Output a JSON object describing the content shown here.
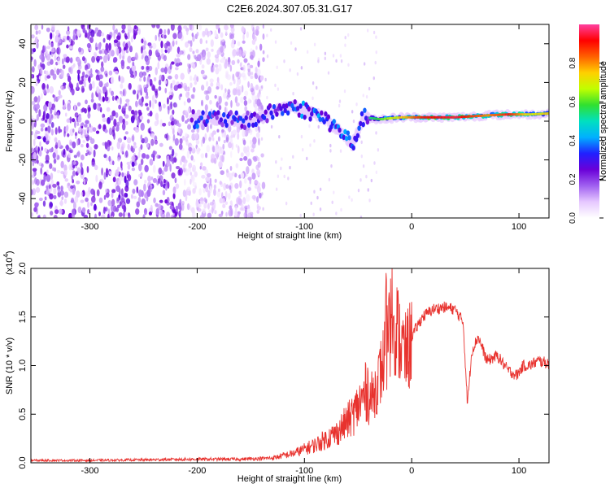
{
  "figure": {
    "title": "C2E6.2024.307.05.31.G17"
  },
  "chart_data": [
    {
      "type": "heatmap",
      "xlabel": "Height of straight line (km)",
      "ylabel": "Frequency (Hz)",
      "xlim": [
        -355,
        128
      ],
      "ylim": [
        -50,
        50
      ],
      "x_ticks": [
        -300,
        -200,
        -100,
        0,
        100
      ],
      "y_ticks": [
        -40,
        -20,
        0,
        20,
        40
      ],
      "x_tick_labels": [
        "-300",
        "-200",
        "-100",
        "0",
        "100"
      ],
      "y_tick_labels": [
        "-40",
        "-20",
        "0",
        "20",
        "40"
      ],
      "colorbar": {
        "label": "Normalized spectral amplitude",
        "range": [
          0,
          1
        ],
        "ticks": [
          0.0,
          0.2,
          0.4,
          0.6,
          0.8
        ],
        "tick_labels": [
          "0.0",
          "0.2",
          "0.4",
          "0.6",
          "0.8"
        ],
        "colormap": [
          "#ffffff",
          "#e6c8ff",
          "#a060f0",
          "#6a00d8",
          "#2020ff",
          "#00b0ff",
          "#00e0c0",
          "#30e030",
          "#c0ff00",
          "#ffd000",
          "#ff6000",
          "#ff0000",
          "#ff40a0"
        ]
      },
      "signal_track": [
        {
          "x": -205,
          "f": 1.0,
          "amp": 0.55
        },
        {
          "x": -180,
          "f": 1.5,
          "amp": 0.5
        },
        {
          "x": -160,
          "f": 0.0,
          "amp": 0.5
        },
        {
          "x": -140,
          "f": 2.0,
          "amp": 0.45
        },
        {
          "x": -125,
          "f": 6.0,
          "amp": 0.55
        },
        {
          "x": -110,
          "f": 7.5,
          "amp": 0.6
        },
        {
          "x": -95,
          "f": 5.0,
          "amp": 0.62
        },
        {
          "x": -80,
          "f": 1.0,
          "amp": 0.6
        },
        {
          "x": -65,
          "f": -6.0,
          "amp": 0.6
        },
        {
          "x": -55,
          "f": -12.0,
          "amp": 0.55
        },
        {
          "x": -45,
          "f": 2.0,
          "amp": 0.5
        },
        {
          "x": -30,
          "f": 1.0,
          "amp": 0.6
        },
        {
          "x": -10,
          "f": 2.0,
          "amp": 0.75
        },
        {
          "x": 10,
          "f": 2.0,
          "amp": 0.9
        },
        {
          "x": 40,
          "f": 2.0,
          "amp": 0.95
        },
        {
          "x": 70,
          "f": 3.0,
          "amp": 0.8
        },
        {
          "x": 90,
          "f": 3.5,
          "amp": 0.9
        },
        {
          "x": 110,
          "f": 3.5,
          "amp": 0.7
        },
        {
          "x": 128,
          "f": 4.0,
          "amp": 0.75
        }
      ],
      "noise_region": {
        "x_from": -355,
        "x_to": -138,
        "f_from": -50,
        "f_to": 50
      }
    },
    {
      "type": "line",
      "xlabel": "Height of straight line (km)",
      "ylabel": "SNR (10 * v/v)",
      "y_multiplier_label": "(x10",
      "y_multiplier_exp": "4",
      "y_multiplier_close": ")",
      "xlim": [
        -355,
        128
      ],
      "ylim": [
        0,
        2.0
      ],
      "x_ticks": [
        -300,
        -200,
        -100,
        0,
        100
      ],
      "y_ticks": [
        0.0,
        0.5,
        1.0,
        1.5,
        2.0
      ],
      "x_tick_labels": [
        "-300",
        "-200",
        "-100",
        "0",
        "100"
      ],
      "y_tick_labels": [
        "0.0",
        "0.5",
        "1.0",
        "1.5",
        "2.0"
      ],
      "color": "#e8322e",
      "series": [
        {
          "x": [
            -355,
            -300,
            -250,
            -200,
            -160,
            -130,
            -110,
            -90,
            -70,
            -55,
            -45,
            -35,
            -28,
            -22,
            -18,
            -12,
            -6,
            0,
            10,
            20,
            30,
            40,
            48,
            52,
            56,
            62,
            70,
            80,
            90,
            98,
            104,
            110,
            118,
            128
          ],
          "y": [
            0.02,
            0.02,
            0.025,
            0.03,
            0.03,
            0.04,
            0.08,
            0.15,
            0.25,
            0.4,
            0.55,
            0.75,
            1.0,
            1.3,
            1.6,
            1.35,
            1.15,
            1.3,
            1.5,
            1.58,
            1.6,
            1.58,
            1.45,
            0.6,
            1.15,
            1.3,
            1.05,
            1.1,
            0.95,
            0.9,
            1.0,
            1.0,
            1.05,
            1.02
          ]
        }
      ]
    }
  ]
}
